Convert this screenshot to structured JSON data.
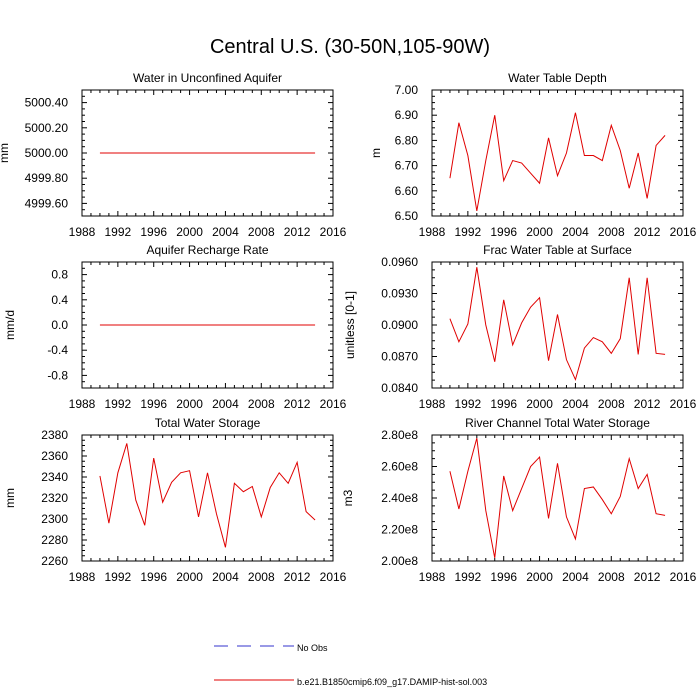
{
  "title": "Central U.S. (30-50N,105-90W)",
  "legend": {
    "items": [
      {
        "label": "No Obs",
        "color": "#3333cc",
        "style": "dashed"
      },
      {
        "label": "b.e21.B1850cmip6.f09_g17.DAMIP-hist-sol.003",
        "color": "#e00000",
        "style": "solid"
      }
    ]
  },
  "chart_data": [
    {
      "type": "line",
      "title": "Water in Unconfined Aquifer",
      "ylabel": "mm",
      "xlim": [
        1988,
        2016
      ],
      "ylim": [
        4999.5,
        5000.5
      ],
      "xticks": [
        "1988",
        "1992",
        "1996",
        "2000",
        "2004",
        "2008",
        "2012",
        "2016"
      ],
      "yticks": [
        "4999.60",
        "4999.80",
        "5000.00",
        "5000.20",
        "5000.40"
      ],
      "x": [
        1990,
        2014
      ],
      "series": [
        {
          "values": [
            5000.0,
            5000.0
          ],
          "color": "#e00000"
        }
      ]
    },
    {
      "type": "line",
      "title": "Water Table Depth",
      "ylabel": "m",
      "xlim": [
        1988,
        2016
      ],
      "ylim": [
        6.5,
        7.0
      ],
      "xticks": [
        "1988",
        "1992",
        "1996",
        "2000",
        "2004",
        "2008",
        "2012",
        "2016"
      ],
      "yticks": [
        "6.50",
        "6.60",
        "6.70",
        "6.80",
        "6.90",
        "7.00"
      ],
      "x": [
        1990,
        1991,
        1992,
        1993,
        1994,
        1995,
        1996,
        1997,
        1998,
        1999,
        2000,
        2001,
        2002,
        2003,
        2004,
        2005,
        2006,
        2007,
        2008,
        2009,
        2010,
        2011,
        2012,
        2013,
        2014
      ],
      "series": [
        {
          "values": [
            6.65,
            6.87,
            6.74,
            6.52,
            6.72,
            6.9,
            6.64,
            6.72,
            6.71,
            6.67,
            6.63,
            6.81,
            6.66,
            6.75,
            6.91,
            6.74,
            6.74,
            6.72,
            6.86,
            6.76,
            6.61,
            6.75,
            6.57,
            6.78,
            6.82
          ],
          "color": "#e00000"
        }
      ]
    },
    {
      "type": "line",
      "title": "Aquifer Recharge Rate",
      "ylabel": "mm/d",
      "xlim": [
        1988,
        2016
      ],
      "ylim": [
        -1.0,
        1.0
      ],
      "xticks": [
        "1988",
        "1992",
        "1996",
        "2000",
        "2004",
        "2008",
        "2012",
        "2016"
      ],
      "yticks": [
        "-0.8",
        "-0.4",
        "0.0",
        "0.4",
        "0.8"
      ],
      "x": [
        1990,
        2014
      ],
      "series": [
        {
          "values": [
            0.0,
            0.0
          ],
          "color": "#e00000"
        }
      ]
    },
    {
      "type": "line",
      "title": "Frac Water Table at Surface",
      "ylabel": "unitless [0-1]",
      "xlim": [
        1988,
        2016
      ],
      "ylim": [
        0.084,
        0.096
      ],
      "xticks": [
        "1988",
        "1992",
        "1996",
        "2000",
        "2004",
        "2008",
        "2012",
        "2016"
      ],
      "yticks": [
        "0.0840",
        "0.0870",
        "0.0900",
        "0.0930",
        "0.0960"
      ],
      "x": [
        1990,
        1991,
        1992,
        1993,
        1994,
        1995,
        1996,
        1997,
        1998,
        1999,
        2000,
        2001,
        2002,
        2003,
        2004,
        2005,
        2006,
        2007,
        2008,
        2009,
        2010,
        2011,
        2012,
        2013,
        2014
      ],
      "series": [
        {
          "values": [
            0.0906,
            0.0884,
            0.0901,
            0.0955,
            0.09,
            0.0865,
            0.0924,
            0.0881,
            0.0902,
            0.0917,
            0.0926,
            0.0866,
            0.091,
            0.0867,
            0.0848,
            0.0878,
            0.0888,
            0.0884,
            0.0873,
            0.0887,
            0.0945,
            0.0872,
            0.0945,
            0.0873,
            0.0872
          ],
          "color": "#e00000"
        }
      ]
    },
    {
      "type": "line",
      "title": "Total Water Storage",
      "ylabel": "mm",
      "xlim": [
        1988,
        2016
      ],
      "ylim": [
        2260,
        2380
      ],
      "xticks": [
        "1988",
        "1992",
        "1996",
        "2000",
        "2004",
        "2008",
        "2012",
        "2016"
      ],
      "yticks": [
        "2260",
        "2280",
        "2300",
        "2320",
        "2340",
        "2360",
        "2380"
      ],
      "x": [
        1990,
        1991,
        1992,
        1993,
        1994,
        1995,
        1996,
        1997,
        1998,
        1999,
        2000,
        2001,
        2002,
        2003,
        2004,
        2005,
        2006,
        2007,
        2008,
        2009,
        2010,
        2011,
        2012,
        2013,
        2014
      ],
      "series": [
        {
          "values": [
            2341,
            2296,
            2344,
            2372,
            2318,
            2294,
            2358,
            2316,
            2335,
            2344,
            2346,
            2302,
            2344,
            2305,
            2273,
            2334,
            2326,
            2331,
            2302,
            2330,
            2344,
            2334,
            2354,
            2307,
            2299
          ],
          "color": "#e00000"
        }
      ]
    },
    {
      "type": "line",
      "title": "River Channel Total Water Storage",
      "ylabel": "m3",
      "xlim": [
        1988,
        2016
      ],
      "ylim": [
        200000000,
        280000000
      ],
      "xticks": [
        "1988",
        "1992",
        "1996",
        "2000",
        "2004",
        "2008",
        "2012",
        "2016"
      ],
      "yticks": [
        "2.00e8",
        "2.20e8",
        "2.40e8",
        "2.60e8",
        "2.80e8"
      ],
      "x": [
        1990,
        1991,
        1992,
        1993,
        1994,
        1995,
        1996,
        1997,
        1998,
        1999,
        2000,
        2001,
        2002,
        2003,
        2004,
        2005,
        2006,
        2007,
        2008,
        2009,
        2010,
        2011,
        2012,
        2013,
        2014
      ],
      "series": [
        {
          "values": [
            257000000,
            233000000,
            257000000,
            278000000,
            232000000,
            202000000,
            254000000,
            232000000,
            246000000,
            260000000,
            266000000,
            227000000,
            262000000,
            228000000,
            214000000,
            246000000,
            247000000,
            239000000,
            230000000,
            241000000,
            265000000,
            246000000,
            255000000,
            230000000,
            229000000
          ],
          "color": "#e00000"
        }
      ]
    }
  ]
}
